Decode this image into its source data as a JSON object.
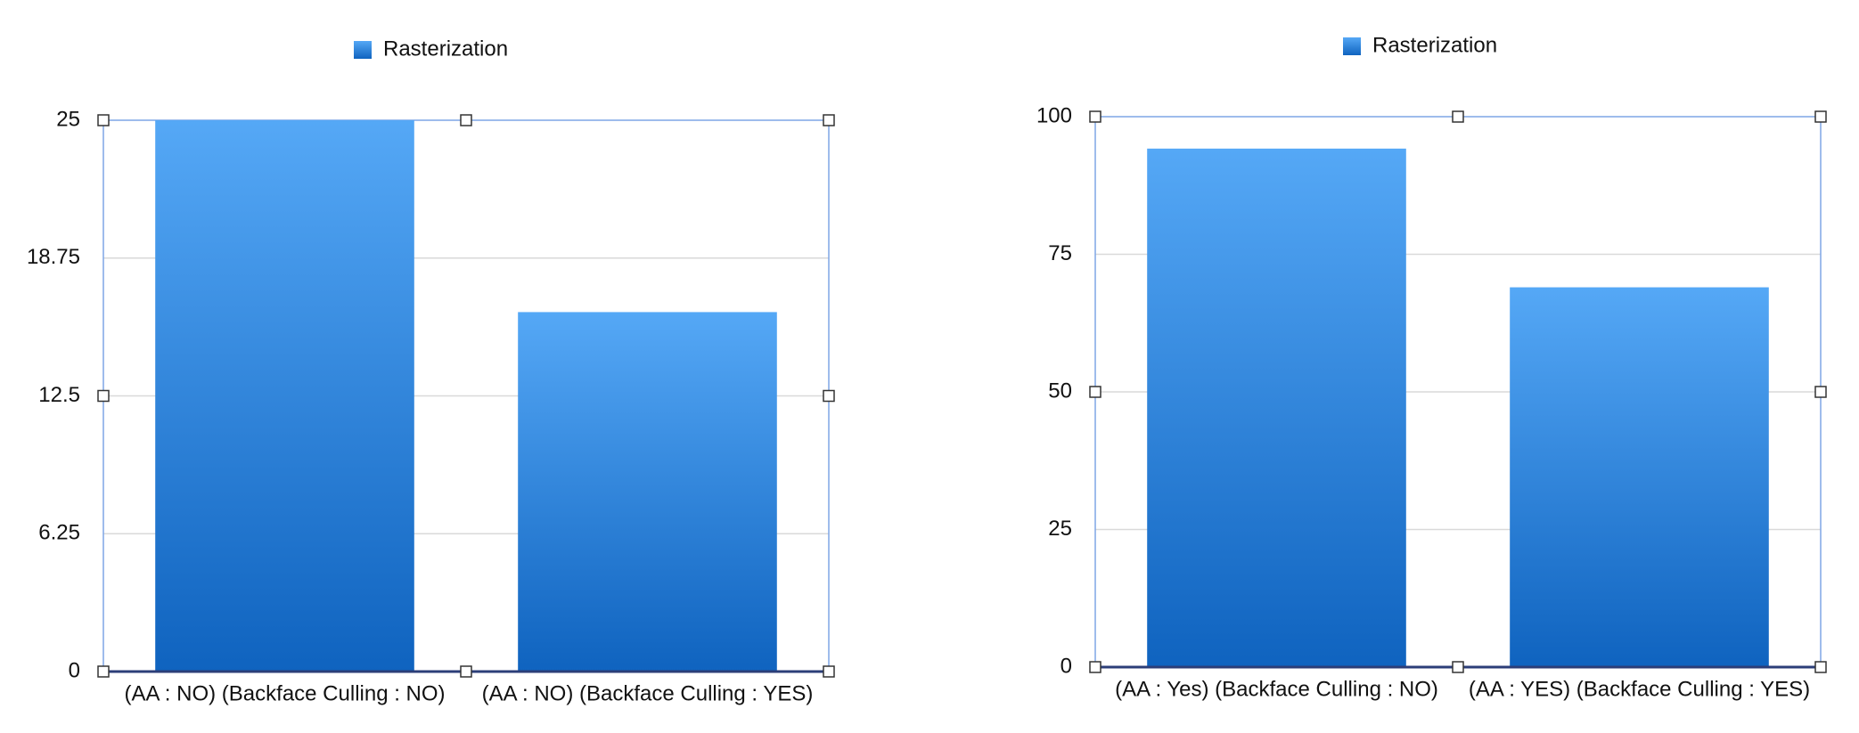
{
  "chart_data": [
    {
      "type": "bar",
      "categories": [
        "(AA : NO) (Backface Culling : NO)",
        "(AA : NO) (Backface Culling : YES)"
      ],
      "series": [
        {
          "name": "Rasterization",
          "values": [
            25,
            16.3
          ]
        }
      ],
      "title": "",
      "xlabel": "",
      "ylabel": "",
      "ylim": [
        0,
        25
      ],
      "yticks": [
        "0",
        "6.25",
        "12.5",
        "18.75",
        "25"
      ],
      "grid": true,
      "legend": "top-center"
    },
    {
      "type": "bar",
      "categories": [
        "(AA : Yes) (Backface Culling : NO)",
        "(AA : YES) (Backface Culling : YES)"
      ],
      "series": [
        {
          "name": "Rasterization",
          "values": [
            94.2,
            69
          ]
        }
      ],
      "title": "",
      "xlabel": "",
      "ylabel": "",
      "ylim": [
        0,
        100
      ],
      "yticks": [
        "0",
        "25",
        "50",
        "75",
        "100"
      ],
      "grid": true,
      "legend": "top-center"
    }
  ],
  "colors": {
    "bar_top": "#55a8f6",
    "bar_bottom": "#0f63bf",
    "grid": "#d9d9d9",
    "frame": "#7fa6e6",
    "baseline": "#2c3e78",
    "handle_stroke": "#333333"
  }
}
